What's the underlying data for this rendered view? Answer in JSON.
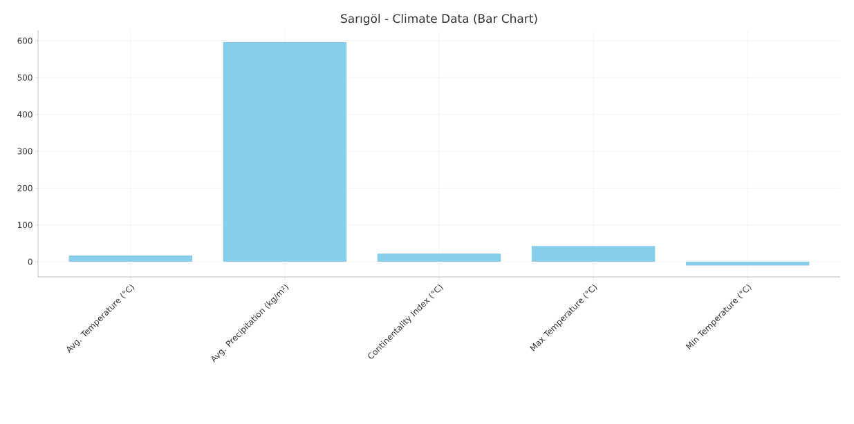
{
  "chart_data": {
    "type": "bar",
    "title": "Sarıgöl - Climate Data (Bar Chart)",
    "categories": [
      "Avg. Temperature (°C)",
      "Avg. Precipitation (kg/m²)",
      "Continentality Index (°C)",
      "Max Temperature (°C)",
      "Min Temperature (°C)"
    ],
    "values": [
      17,
      596,
      22,
      43,
      -10
    ],
    "color": "#87ceeb",
    "ylim": [
      -41,
      628
    ],
    "yticks": [
      0,
      100,
      200,
      300,
      400,
      500,
      600
    ],
    "grid": true
  }
}
